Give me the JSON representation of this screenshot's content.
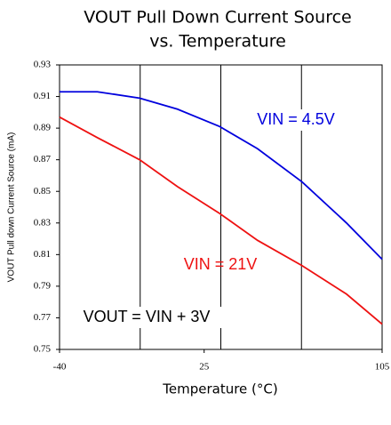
{
  "chart_data": {
    "type": "line",
    "title": [
      "VOUT Pull Down Current Source",
      "vs. Temperature"
    ],
    "xlabel": "Temperature (°C)",
    "ylabel": "VOUT Pull down Current Source (mA)",
    "x": [
      -40,
      -23,
      -4,
      13,
      32,
      49,
      69,
      89,
      105
    ],
    "series": [
      {
        "name": "VIN = 4.5V",
        "color": "#0000dd",
        "values": [
          0.913,
          0.913,
          0.909,
          0.902,
          0.891,
          0.877,
          0.856,
          0.83,
          0.807
        ]
      },
      {
        "name": "VIN = 21V",
        "color": "#ee1111",
        "values": [
          0.897,
          0.884,
          0.87,
          0.853,
          0.836,
          0.819,
          0.803,
          0.785,
          0.766
        ]
      }
    ],
    "annotations": [
      "VOUT = VIN + 3V"
    ],
    "xlim": [
      -40,
      105
    ],
    "xticks": [
      -40,
      25,
      105
    ],
    "xgrid": [
      -3.75,
      32.5,
      68.75
    ],
    "ylim": [
      0.75,
      0.93
    ],
    "yticks": [
      0.75,
      0.77,
      0.79,
      0.81,
      0.83,
      0.85,
      0.87,
      0.89,
      0.91,
      0.93
    ]
  }
}
